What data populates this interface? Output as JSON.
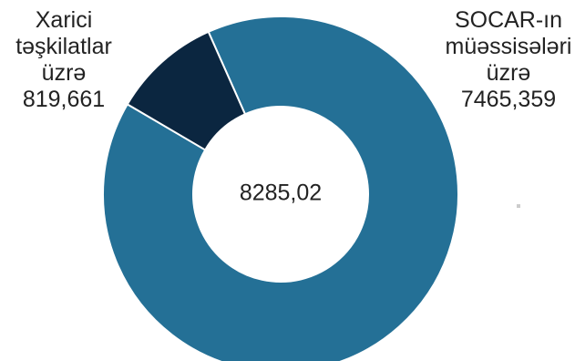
{
  "chart_data": {
    "type": "donut",
    "series": [
      {
        "name": "SOCAR-ın müəssisələri üzrə",
        "color": "#247096",
        "values": [
          7465.359
        ],
        "value_labels": [
          "7465,359"
        ]
      },
      {
        "name": "Xarici təşkilatlar üzrə",
        "color": "#0b2640",
        "values": [
          819.661
        ],
        "value_labels": [
          "819,661"
        ]
      }
    ],
    "center_label": "8285,02"
  }
}
